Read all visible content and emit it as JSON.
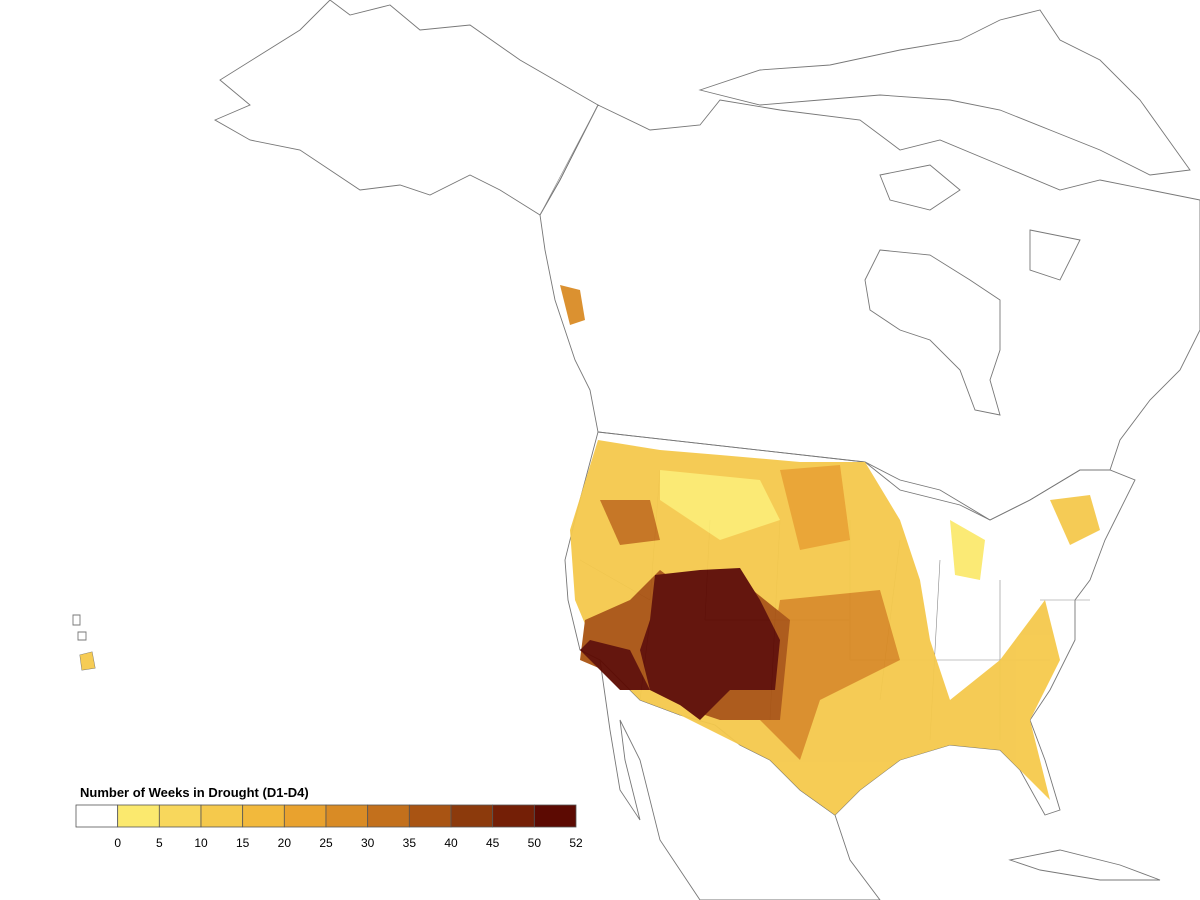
{
  "legend": {
    "title": "Number of Weeks in Drought (D1-D4)",
    "ticks": [
      0,
      5,
      10,
      15,
      20,
      25,
      30,
      35,
      40,
      45,
      50,
      52
    ],
    "colors": [
      "#ffffff",
      "#fbe96e",
      "#f8d75c",
      "#f5c94c",
      "#f2b93c",
      "#e9a22e",
      "#d98b25",
      "#c3701c",
      "#a95413",
      "#8c3a0c",
      "#741f06",
      "#5c0a02"
    ]
  }
}
